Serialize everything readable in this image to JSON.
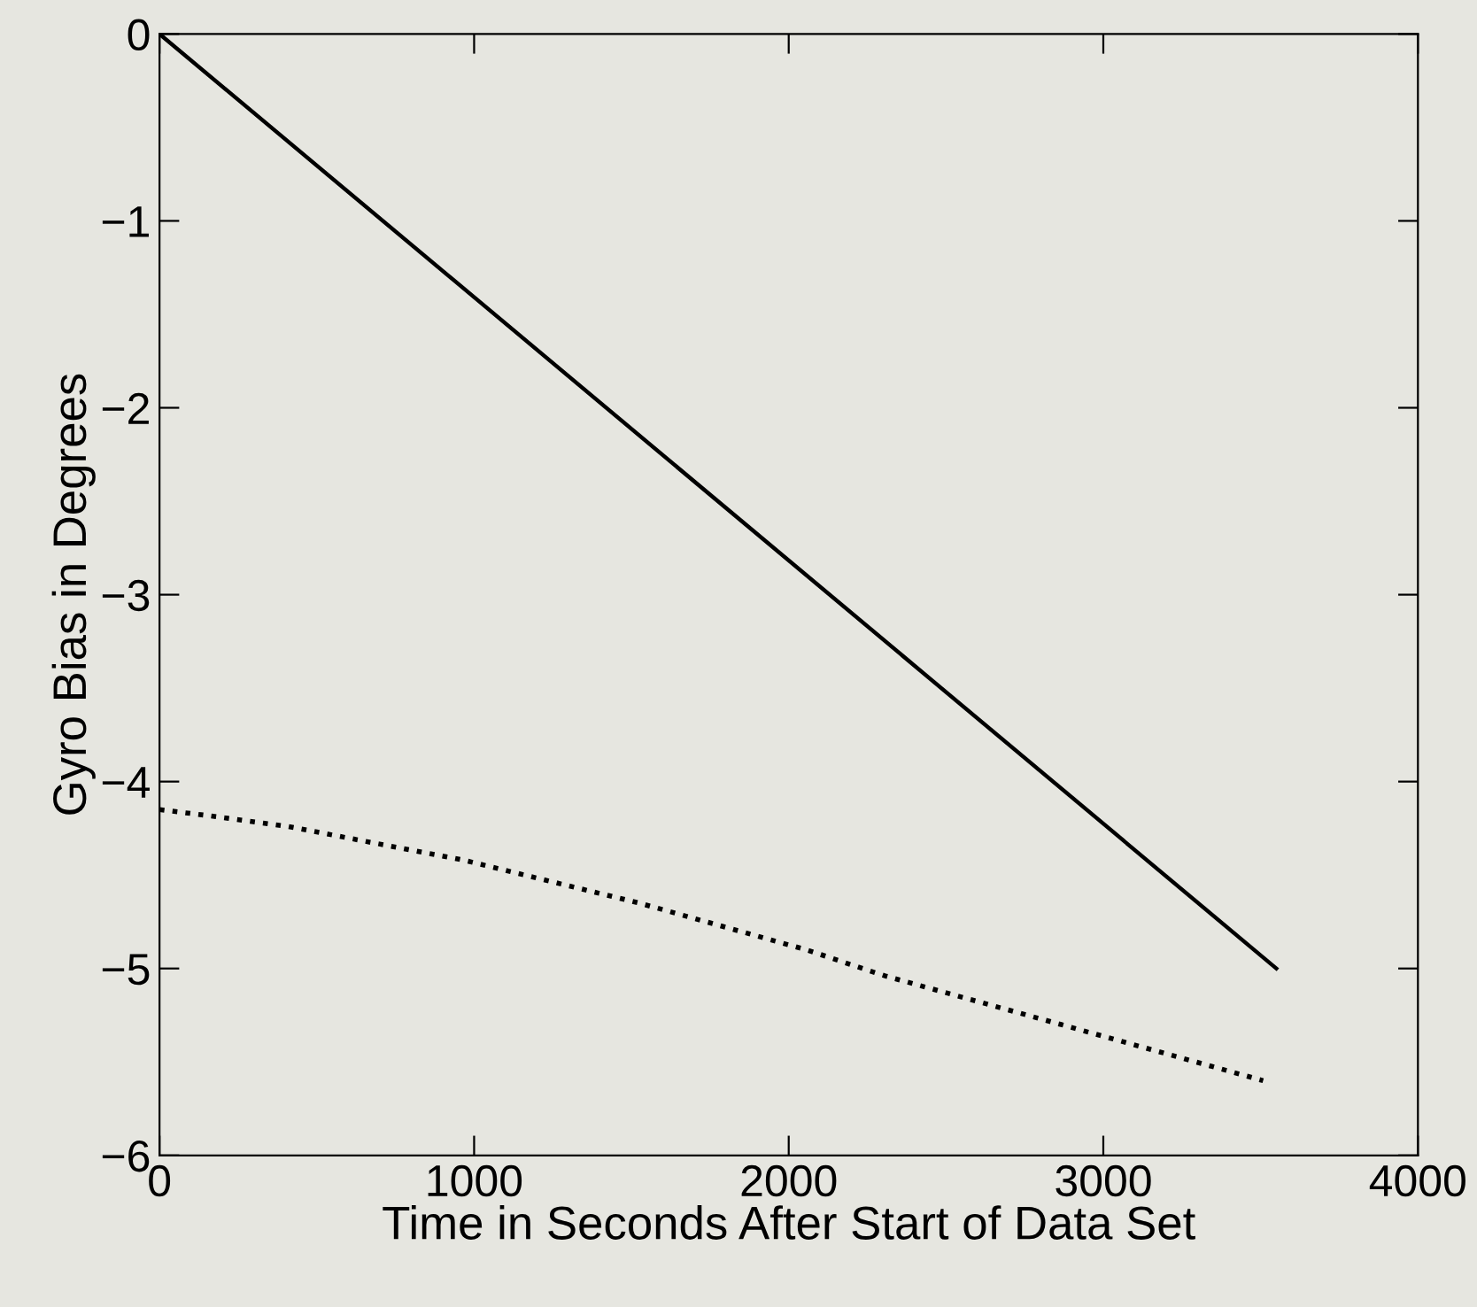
{
  "chart_data": {
    "type": "line",
    "xlabel": "Time in Seconds After Start of Data Set",
    "ylabel": "Gyro Bias in Degrees",
    "xlim": [
      0,
      4000
    ],
    "ylim": [
      -6,
      0
    ],
    "xticks": [
      0,
      1000,
      2000,
      3000,
      4000
    ],
    "yticks": [
      -6,
      -5,
      -4,
      -3,
      -2,
      -1,
      0
    ],
    "grid": false,
    "legend": false,
    "series": [
      {
        "color": "#000000",
        "line_style": "solid",
        "x": [
          0,
          3550
        ],
        "values": [
          0,
          -5.0
        ]
      },
      {
        "color": "#000000",
        "line_style": "dotted",
        "x": [
          0,
          145,
          408,
          966,
          1525,
          2056,
          2307,
          2866,
          3508
        ],
        "values": [
          -4.15,
          -4.18,
          -4.24,
          -4.42,
          -4.65,
          -4.9,
          -5.04,
          -5.3,
          -5.6
        ]
      }
    ]
  }
}
